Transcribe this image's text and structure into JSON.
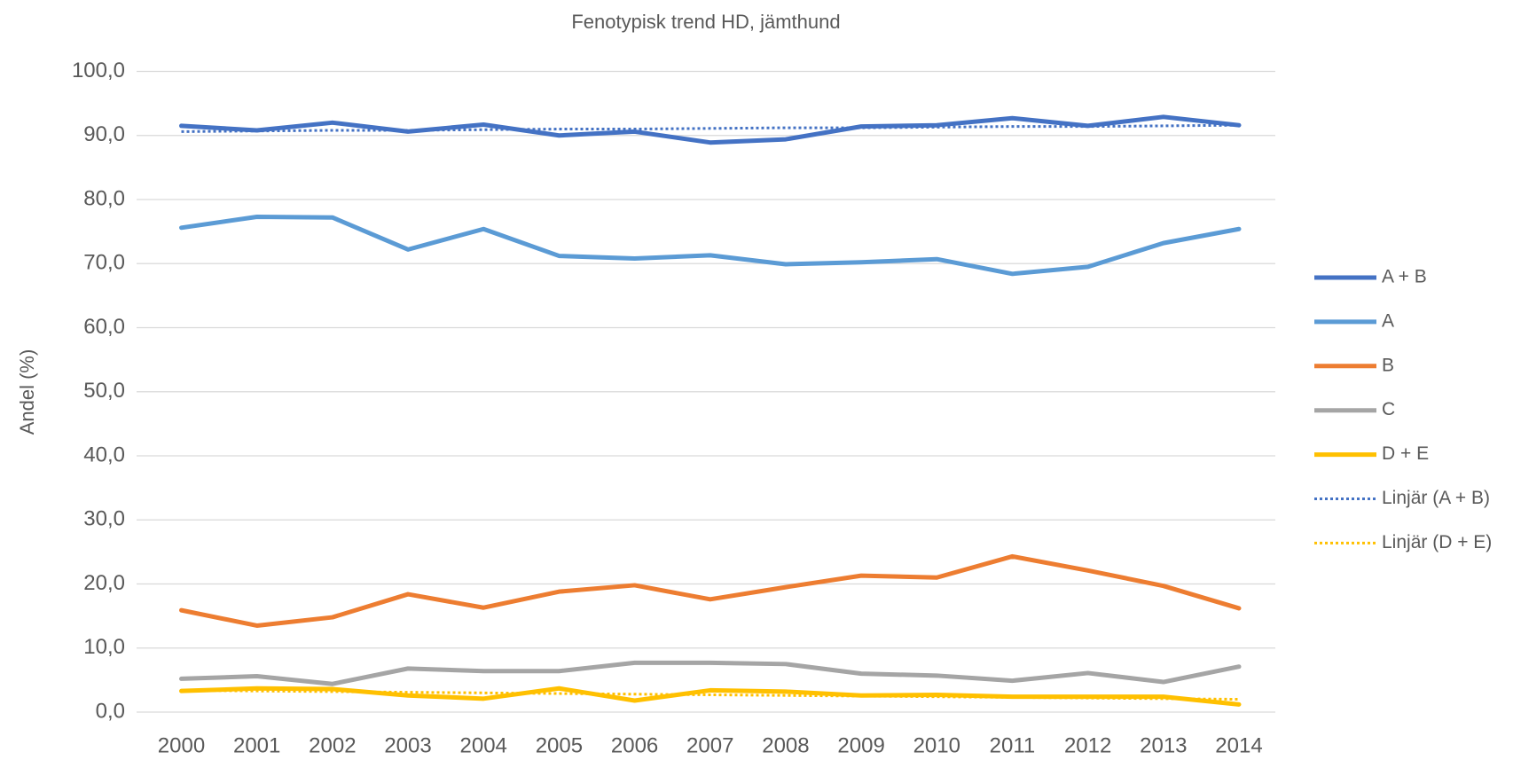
{
  "chart_data": {
    "type": "line",
    "title": "Fenotypisk trend HD, jämthund",
    "ylabel": "Andel (%)",
    "categories": [
      "2000",
      "2001",
      "2002",
      "2003",
      "2004",
      "2005",
      "2006",
      "2007",
      "2008",
      "2009",
      "2010",
      "2011",
      "2012",
      "2013",
      "2014"
    ],
    "ylim": [
      0,
      100
    ],
    "yticks": [
      {
        "value": 0,
        "label": "0,0"
      },
      {
        "value": 10,
        "label": "10,0"
      },
      {
        "value": 20,
        "label": "20,0"
      },
      {
        "value": 30,
        "label": "30,0"
      },
      {
        "value": 40,
        "label": "40,0"
      },
      {
        "value": 50,
        "label": "50,0"
      },
      {
        "value": 60,
        "label": "60,0"
      },
      {
        "value": 70,
        "label": "70,0"
      },
      {
        "value": 80,
        "label": "80,0"
      },
      {
        "value": 90,
        "label": "90,0"
      },
      {
        "value": 100,
        "label": "100,0"
      }
    ],
    "grid": true,
    "legend": "right",
    "series": [
      {
        "name": "A + B",
        "color": "#4472c4",
        "dashed": false,
        "values": [
          91.5,
          90.8,
          92.0,
          90.6,
          91.7,
          90.0,
          90.6,
          88.9,
          89.4,
          91.4,
          91.6,
          92.7,
          91.5,
          92.9,
          91.6
        ]
      },
      {
        "name": "A",
        "color": "#5b9bd5",
        "dashed": false,
        "values": [
          75.6,
          77.3,
          77.2,
          72.2,
          75.4,
          71.2,
          70.8,
          71.3,
          69.9,
          70.2,
          70.7,
          68.4,
          69.5,
          73.2,
          75.4
        ]
      },
      {
        "name": "B",
        "color": "#ed7d31",
        "dashed": false,
        "values": [
          15.9,
          13.5,
          14.8,
          18.4,
          16.3,
          18.8,
          19.8,
          17.6,
          19.5,
          21.3,
          21.0,
          24.3,
          22.1,
          19.7,
          16.2
        ]
      },
      {
        "name": "C",
        "color": "#a5a5a5",
        "dashed": false,
        "values": [
          5.2,
          5.6,
          4.4,
          6.8,
          6.4,
          6.4,
          7.7,
          7.7,
          7.5,
          6.0,
          5.7,
          4.9,
          6.1,
          4.7,
          7.1
        ]
      },
      {
        "name": "D + E",
        "color": "#ffc000",
        "dashed": false,
        "values": [
          3.3,
          3.7,
          3.6,
          2.6,
          2.1,
          3.7,
          1.8,
          3.4,
          3.2,
          2.6,
          2.7,
          2.4,
          2.4,
          2.4,
          1.2
        ]
      },
      {
        "name": "Linjär (A + B)",
        "color": "#4472c4",
        "dashed": true,
        "values": [
          90.6,
          90.7,
          90.8,
          90.8,
          90.9,
          91.0,
          91.0,
          91.1,
          91.2,
          91.2,
          91.3,
          91.4,
          91.4,
          91.5,
          91.6
        ]
      },
      {
        "name": "Linjär (D + E)",
        "color": "#ffc000",
        "dashed": true,
        "values": [
          3.4,
          3.3,
          3.2,
          3.1,
          3.0,
          2.9,
          2.8,
          2.7,
          2.6,
          2.5,
          2.4,
          2.3,
          2.2,
          2.1,
          2.0
        ]
      }
    ]
  }
}
